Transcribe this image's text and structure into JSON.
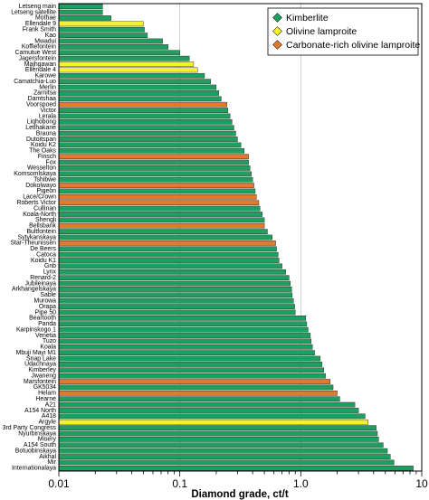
{
  "chart_data": {
    "type": "bar",
    "orientation": "horizontal",
    "xscale": "log",
    "xlim": [
      0.01,
      10
    ],
    "xlabel": "Diamond grade, ct/t",
    "xticks": [
      {
        "value": 0.01,
        "label": "0.01"
      },
      {
        "value": 0.1,
        "label": "0.1"
      },
      {
        "value": 1,
        "label": "1.0"
      },
      {
        "value": 10,
        "label": "10"
      }
    ],
    "colors": {
      "Kimberlite": "#1f9f5f",
      "Olivine lamproite": "#f2f230",
      "Carbonate-rich olivine lamproite": "#e07a2e"
    },
    "legend": {
      "placement": "top-right",
      "entries": [
        "Kimberlite",
        "Olivine lamproite",
        "Carbonate-rich olivine lamproite"
      ]
    },
    "categories": [
      {
        "name": "Letseng main",
        "value": 0.023,
        "type": "Kimberlite"
      },
      {
        "name": "Letseng satellite",
        "value": 0.023,
        "type": "Kimberlite"
      },
      {
        "name": "Mothae",
        "value": 0.027,
        "type": "Kimberlite"
      },
      {
        "name": "Ellendale 9",
        "value": 0.05,
        "type": "Olivine lamproite"
      },
      {
        "name": "Frank Smith",
        "value": 0.051,
        "type": "Kimberlite"
      },
      {
        "name": "Kao",
        "value": 0.054,
        "type": "Kimberlite"
      },
      {
        "name": "Mwadui",
        "value": 0.072,
        "type": "Kimberlite"
      },
      {
        "name": "Koffiefontein",
        "value": 0.08,
        "type": "Kimberlite"
      },
      {
        "name": "Camutue West",
        "value": 0.1,
        "type": "Kimberlite"
      },
      {
        "name": "Jagersfontein",
        "value": 0.12,
        "type": "Kimberlite"
      },
      {
        "name": "Majhgawan",
        "value": 0.13,
        "type": "Olivine lamproite"
      },
      {
        "name": "Ellendale 4",
        "value": 0.14,
        "type": "Olivine lamproite"
      },
      {
        "name": "Karowe",
        "value": 0.16,
        "type": "Kimberlite"
      },
      {
        "name": "Camatchia-Luo",
        "value": 0.18,
        "type": "Kimberlite"
      },
      {
        "name": "Merlin",
        "value": 0.2,
        "type": "Kimberlite"
      },
      {
        "name": "Zarnitsa",
        "value": 0.21,
        "type": "Kimberlite"
      },
      {
        "name": "Damtshaa",
        "value": 0.22,
        "type": "Kimberlite"
      },
      {
        "name": "Voorspoed",
        "value": 0.245,
        "type": "Carbonate-rich olivine lamproite"
      },
      {
        "name": "Victor",
        "value": 0.25,
        "type": "Kimberlite"
      },
      {
        "name": "Lerala",
        "value": 0.26,
        "type": "Kimberlite"
      },
      {
        "name": "Liqhobong",
        "value": 0.27,
        "type": "Kimberlite"
      },
      {
        "name": "Letlhakane",
        "value": 0.28,
        "type": "Kimberlite"
      },
      {
        "name": "Brauna",
        "value": 0.29,
        "type": "Kimberlite"
      },
      {
        "name": "Dutoitspan",
        "value": 0.3,
        "type": "Kimberlite"
      },
      {
        "name": "Koidu K2",
        "value": 0.32,
        "type": "Kimberlite"
      },
      {
        "name": "The Oaks",
        "value": 0.34,
        "type": "Kimberlite"
      },
      {
        "name": "Finsch",
        "value": 0.37,
        "type": "Carbonate-rich olivine lamproite"
      },
      {
        "name": "Fox",
        "value": 0.37,
        "type": "Kimberlite"
      },
      {
        "name": "Wesselton",
        "value": 0.38,
        "type": "Kimberlite"
      },
      {
        "name": "Komsomlskaya",
        "value": 0.39,
        "type": "Kimberlite"
      },
      {
        "name": "Tshibwe",
        "value": 0.4,
        "type": "Kimberlite"
      },
      {
        "name": "Dokolwayo",
        "value": 0.41,
        "type": "Carbonate-rich olivine lamproite"
      },
      {
        "name": "Pigeon",
        "value": 0.42,
        "type": "Kimberlite"
      },
      {
        "name": "Lace/Crown",
        "value": 0.43,
        "type": "Carbonate-rich olivine lamproite"
      },
      {
        "name": "Roberts Victor",
        "value": 0.45,
        "type": "Carbonate-rich olivine lamproite"
      },
      {
        "name": "Cullinan",
        "value": 0.46,
        "type": "Kimberlite"
      },
      {
        "name": "Koala-North",
        "value": 0.48,
        "type": "Kimberlite"
      },
      {
        "name": "Shengli",
        "value": 0.5,
        "type": "Kimberlite"
      },
      {
        "name": "Bellsbank",
        "value": 0.5,
        "type": "Carbonate-rich olivine lamproite"
      },
      {
        "name": "Bultfontein",
        "value": 0.53,
        "type": "Kimberlite"
      },
      {
        "name": "Sytykanskaya",
        "value": 0.58,
        "type": "Kimberlite"
      },
      {
        "name": "Star-Theunissen",
        "value": 0.62,
        "type": "Carbonate-rich olivine lamproite"
      },
      {
        "name": "De Beers",
        "value": 0.63,
        "type": "Kimberlite"
      },
      {
        "name": "Catoca",
        "value": 0.65,
        "type": "Kimberlite"
      },
      {
        "name": "Koidu K1",
        "value": 0.66,
        "type": "Kimberlite"
      },
      {
        "name": "Gnb",
        "value": 0.7,
        "type": "Kimberlite"
      },
      {
        "name": "Lynx",
        "value": 0.75,
        "type": "Kimberlite"
      },
      {
        "name": "Renard-2",
        "value": 0.8,
        "type": "Kimberlite"
      },
      {
        "name": "Jubileinaya",
        "value": 0.82,
        "type": "Kimberlite"
      },
      {
        "name": "Arkhangelskaya",
        "value": 0.84,
        "type": "Kimberlite"
      },
      {
        "name": "Sable",
        "value": 0.85,
        "type": "Kimberlite"
      },
      {
        "name": "Murowa",
        "value": 0.87,
        "type": "Kimberlite"
      },
      {
        "name": "Orapa",
        "value": 0.89,
        "type": "Kimberlite"
      },
      {
        "name": "Pipe 50",
        "value": 0.9,
        "type": "Kimberlite"
      },
      {
        "name": "Beartooth",
        "value": 1.1,
        "type": "Kimberlite"
      },
      {
        "name": "Panda",
        "value": 1.12,
        "type": "Kimberlite"
      },
      {
        "name": "Karpinskogo 1",
        "value": 1.15,
        "type": "Kimberlite"
      },
      {
        "name": "Venetia",
        "value": 1.2,
        "type": "Kimberlite"
      },
      {
        "name": "Tuzo",
        "value": 1.22,
        "type": "Kimberlite"
      },
      {
        "name": "Koala",
        "value": 1.25,
        "type": "Kimberlite"
      },
      {
        "name": "Mbuji Mayi M1",
        "value": 1.3,
        "type": "Kimberlite"
      },
      {
        "name": "Snap Lake",
        "value": 1.45,
        "type": "Kimberlite"
      },
      {
        "name": "Udachnaya",
        "value": 1.5,
        "type": "Kimberlite"
      },
      {
        "name": "Kimberley",
        "value": 1.55,
        "type": "Kimberlite"
      },
      {
        "name": "Jwaneng",
        "value": 1.6,
        "type": "Kimberlite"
      },
      {
        "name": "Marsfontein",
        "value": 1.75,
        "type": "Carbonate-rich olivine lamproite"
      },
      {
        "name": "GK5034",
        "value": 1.85,
        "type": "Kimberlite"
      },
      {
        "name": "Helam",
        "value": 2.0,
        "type": "Carbonate-rich olivine lamproite"
      },
      {
        "name": "Hearne",
        "value": 2.1,
        "type": "Kimberlite"
      },
      {
        "name": "A21",
        "value": 2.8,
        "type": "Kimberlite"
      },
      {
        "name": "A154 North",
        "value": 3.0,
        "type": "Kimberlite"
      },
      {
        "name": "A418",
        "value": 3.4,
        "type": "Kimberlite"
      },
      {
        "name": "Argyle",
        "value": 3.6,
        "type": "Olivine lamproite"
      },
      {
        "name": "3rd Party Congress",
        "value": 4.2,
        "type": "Kimberlite"
      },
      {
        "name": "Nyurbinskaya",
        "value": 4.3,
        "type": "Kimberlite"
      },
      {
        "name": "Misery",
        "value": 4.4,
        "type": "Kimberlite"
      },
      {
        "name": "A154 South",
        "value": 4.8,
        "type": "Kimberlite"
      },
      {
        "name": "Botuobinskaya",
        "value": 5.2,
        "type": "Kimberlite"
      },
      {
        "name": "Aikhal",
        "value": 5.5,
        "type": "Kimberlite"
      },
      {
        "name": "Mir",
        "value": 5.9,
        "type": "Kimberlite"
      },
      {
        "name": "Internationalaya",
        "value": 8.5,
        "type": "Kimberlite"
      }
    ]
  }
}
